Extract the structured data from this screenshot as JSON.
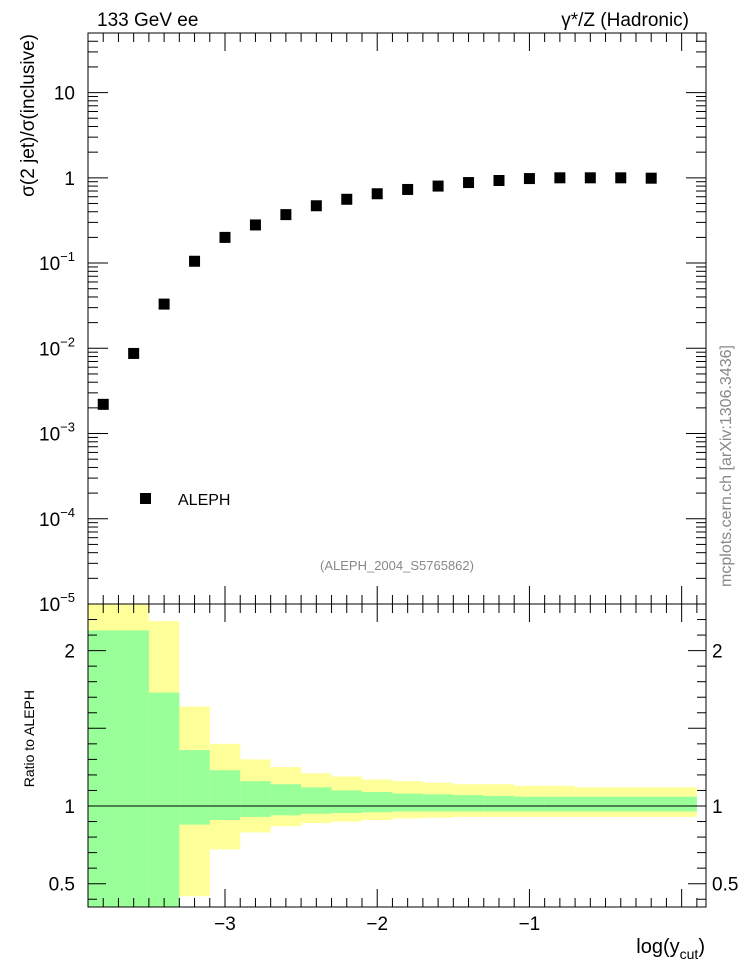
{
  "header": {
    "left": "133 GeV ee",
    "right": "γ*/Z (Hadronic)"
  },
  "watermark": "mcplots.cern.ch [arXiv:1306.3436]",
  "colors": {
    "inner_band": "#99ff99",
    "outer_band": "#ffff99",
    "marker": "#000000"
  },
  "chart_data": [
    {
      "type": "scatter",
      "title": "",
      "ylabel": "σ(2 jet)/σ(inclusive)",
      "yscale": "log",
      "ylim": [
        1e-05,
        50
      ],
      "xlim": [
        -3.9,
        0.16
      ],
      "yticks": [
        {
          "value": 10,
          "label": "10"
        },
        {
          "value": 1,
          "label": "1"
        },
        {
          "value": 0.1,
          "label": "10",
          "exp": "−1"
        },
        {
          "value": 0.01,
          "label": "10",
          "exp": "−2"
        },
        {
          "value": 0.001,
          "label": "10",
          "exp": "−3"
        },
        {
          "value": 0.0001,
          "label": "10",
          "exp": "−4"
        },
        {
          "value": 1e-05,
          "label": "10",
          "exp": "−5"
        }
      ],
      "series": [
        {
          "name": "ALEPH",
          "x": [
            -3.8,
            -3.6,
            -3.4,
            -3.2,
            -3.0,
            -2.8,
            -2.6,
            -2.4,
            -2.2,
            -2.0,
            -1.8,
            -1.6,
            -1.4,
            -1.2,
            -1.0,
            -0.8,
            -0.6,
            -0.4,
            -0.2
          ],
          "y": [
            0.0022,
            0.0087,
            0.033,
            0.105,
            0.2,
            0.28,
            0.37,
            0.47,
            0.56,
            0.65,
            0.73,
            0.8,
            0.88,
            0.93,
            0.98,
            1.0,
            1.0,
            1.0,
            0.99
          ]
        }
      ],
      "legend": {
        "position": "bottom-left",
        "label": "ALEPH"
      },
      "analysis_label": "(ALEPH_2004_S5765862)"
    },
    {
      "type": "area",
      "ylabel": "Ratio to ALEPH",
      "xlabel": "log(y",
      "xlabel_sub": "cut",
      "xlabel_end": ")",
      "ylim": [
        0.35,
        2.3
      ],
      "xlim": [
        -3.9,
        0.16
      ],
      "xticks": [
        {
          "value": -3,
          "label": "−3"
        },
        {
          "value": -2,
          "label": "−2"
        },
        {
          "value": -1,
          "label": "−1"
        }
      ],
      "yticks": [
        {
          "value": 2,
          "label": "2"
        },
        {
          "value": 1,
          "label": "1"
        },
        {
          "value": 0.5,
          "label": "0.5"
        }
      ],
      "bin_edges": [
        -3.9,
        -3.7,
        -3.5,
        -3.3,
        -3.1,
        -2.9,
        -2.7,
        -2.5,
        -2.3,
        -2.1,
        -1.9,
        -1.7,
        -1.5,
        -1.3,
        -1.1,
        -0.9,
        -0.7,
        -0.5,
        -0.3,
        0.1
      ],
      "inner_band": {
        "upper": [
          2.13,
          2.13,
          1.73,
          1.36,
          1.23,
          1.16,
          1.14,
          1.12,
          1.1,
          1.09,
          1.08,
          1.075,
          1.07,
          1.065,
          1.06,
          1.06,
          1.06,
          1.06,
          1.06
        ],
        "lower": [
          0.35,
          0.35,
          0.35,
          0.88,
          0.91,
          0.93,
          0.94,
          0.95,
          0.955,
          0.96,
          0.965,
          0.965,
          0.965,
          0.965,
          0.965,
          0.965,
          0.965,
          0.965,
          0.965
        ]
      },
      "outer_band": {
        "upper": [
          2.3,
          2.3,
          2.19,
          1.64,
          1.4,
          1.3,
          1.25,
          1.21,
          1.19,
          1.17,
          1.16,
          1.15,
          1.14,
          1.14,
          1.13,
          1.13,
          1.12,
          1.12,
          1.12
        ],
        "lower": [
          0.35,
          0.35,
          0.35,
          0.42,
          0.72,
          0.83,
          0.87,
          0.89,
          0.9,
          0.91,
          0.92,
          0.925,
          0.93,
          0.93,
          0.93,
          0.93,
          0.93,
          0.93,
          0.93
        ]
      },
      "reference_line": 1
    }
  ]
}
